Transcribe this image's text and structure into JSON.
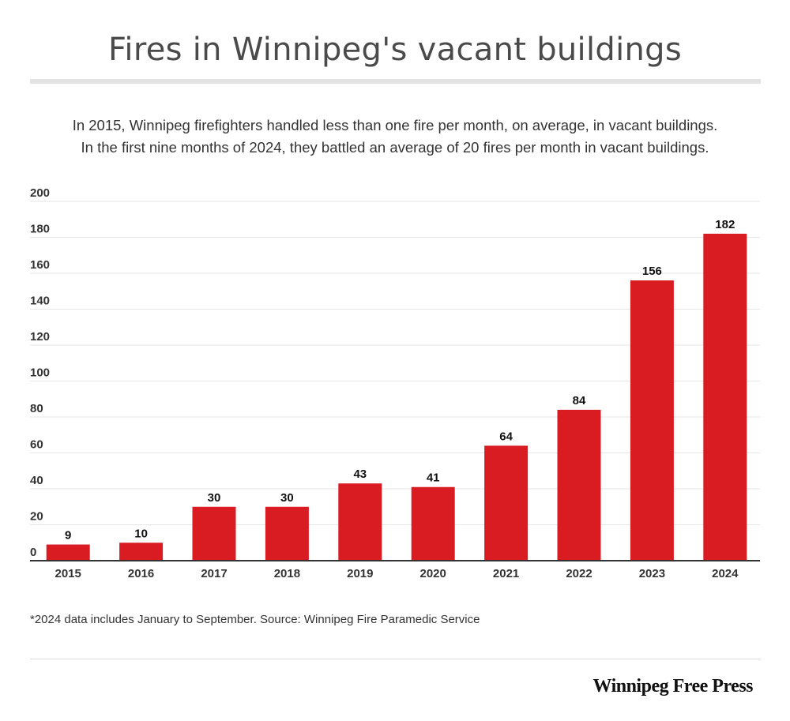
{
  "chart_data": {
    "type": "bar",
    "title": "Fires in Winnipeg's vacant buildings",
    "subtitle_lines": [
      "In 2015, Winnipeg firefighters handled less than one fire per month, on average, in vacant buildings.",
      "In the first nine months of 2024, they battled an average of 20 fires per month in vacant buildings."
    ],
    "categories": [
      "2015",
      "2016",
      "2017",
      "2018",
      "2019",
      "2020",
      "2021",
      "2022",
      "2023",
      "2024"
    ],
    "values": [
      9,
      10,
      30,
      30,
      43,
      41,
      64,
      84,
      156,
      182
    ],
    "xlabel": "",
    "ylabel": "",
    "ylim": [
      0,
      200
    ],
    "yticks": [
      0,
      20,
      40,
      60,
      80,
      100,
      120,
      140,
      160,
      180,
      200
    ],
    "grid": true,
    "bar_color": "#d91c22",
    "data_labels": true
  },
  "footnote": "*2024 data includes January to September. Source: Winnipeg Fire Paramedic Service",
  "brand": "Winnipeg Free Press"
}
